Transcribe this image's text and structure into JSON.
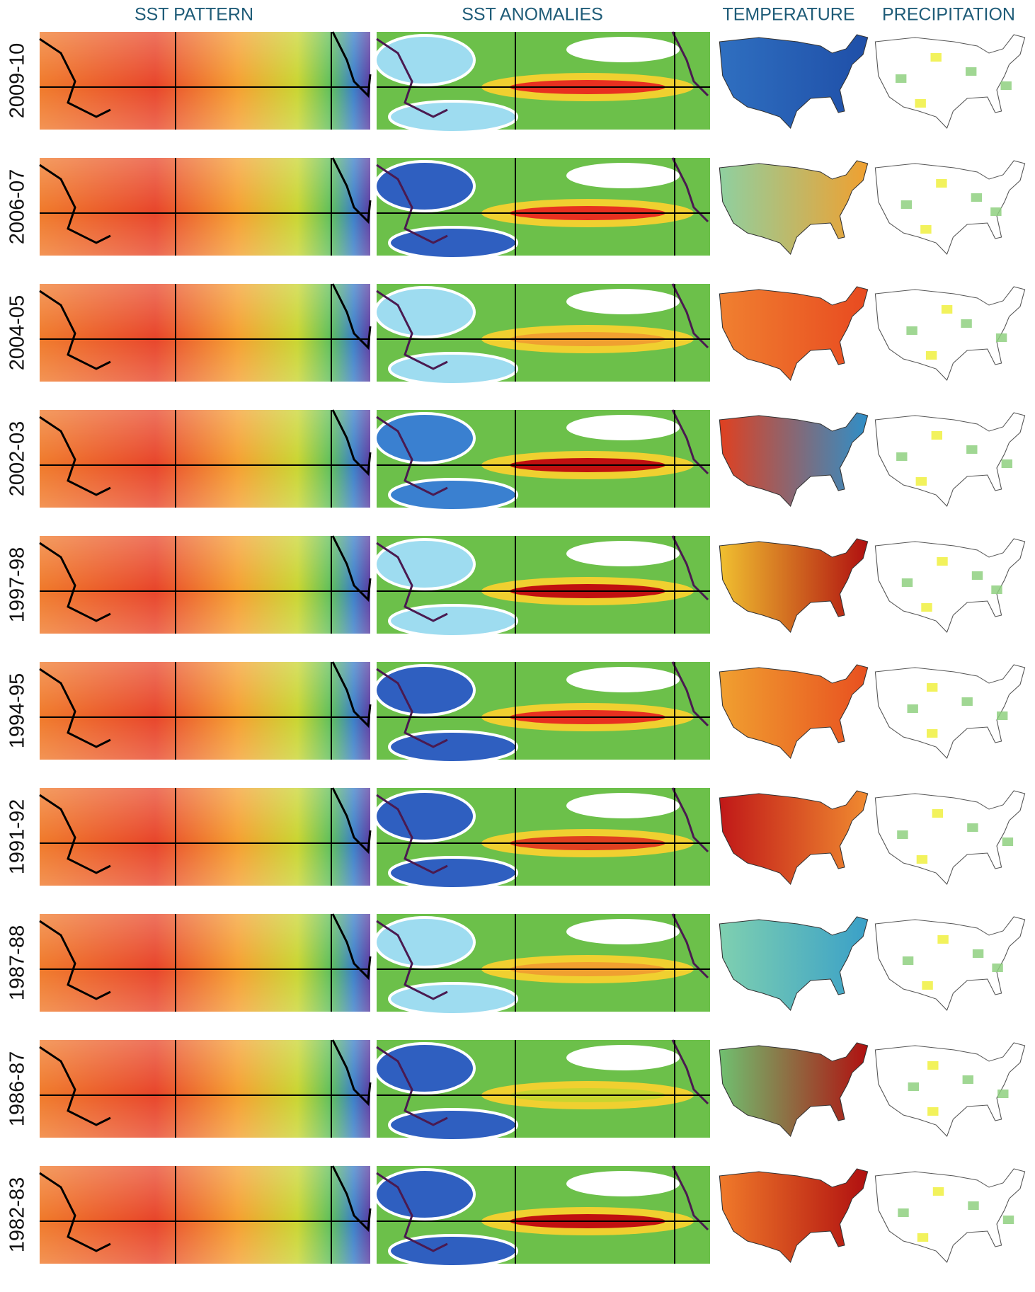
{
  "headers": [
    "SST PATTERN",
    "SST ANOMALIES",
    "TEMPERATURE",
    "PRECIPITATION"
  ],
  "rows": [
    "2009-10",
    "2006-07",
    "2004-05",
    "2002-03",
    "1997-98",
    "1994-95",
    "1991-92",
    "1987-88",
    "1986-87",
    "1982-83"
  ]
}
